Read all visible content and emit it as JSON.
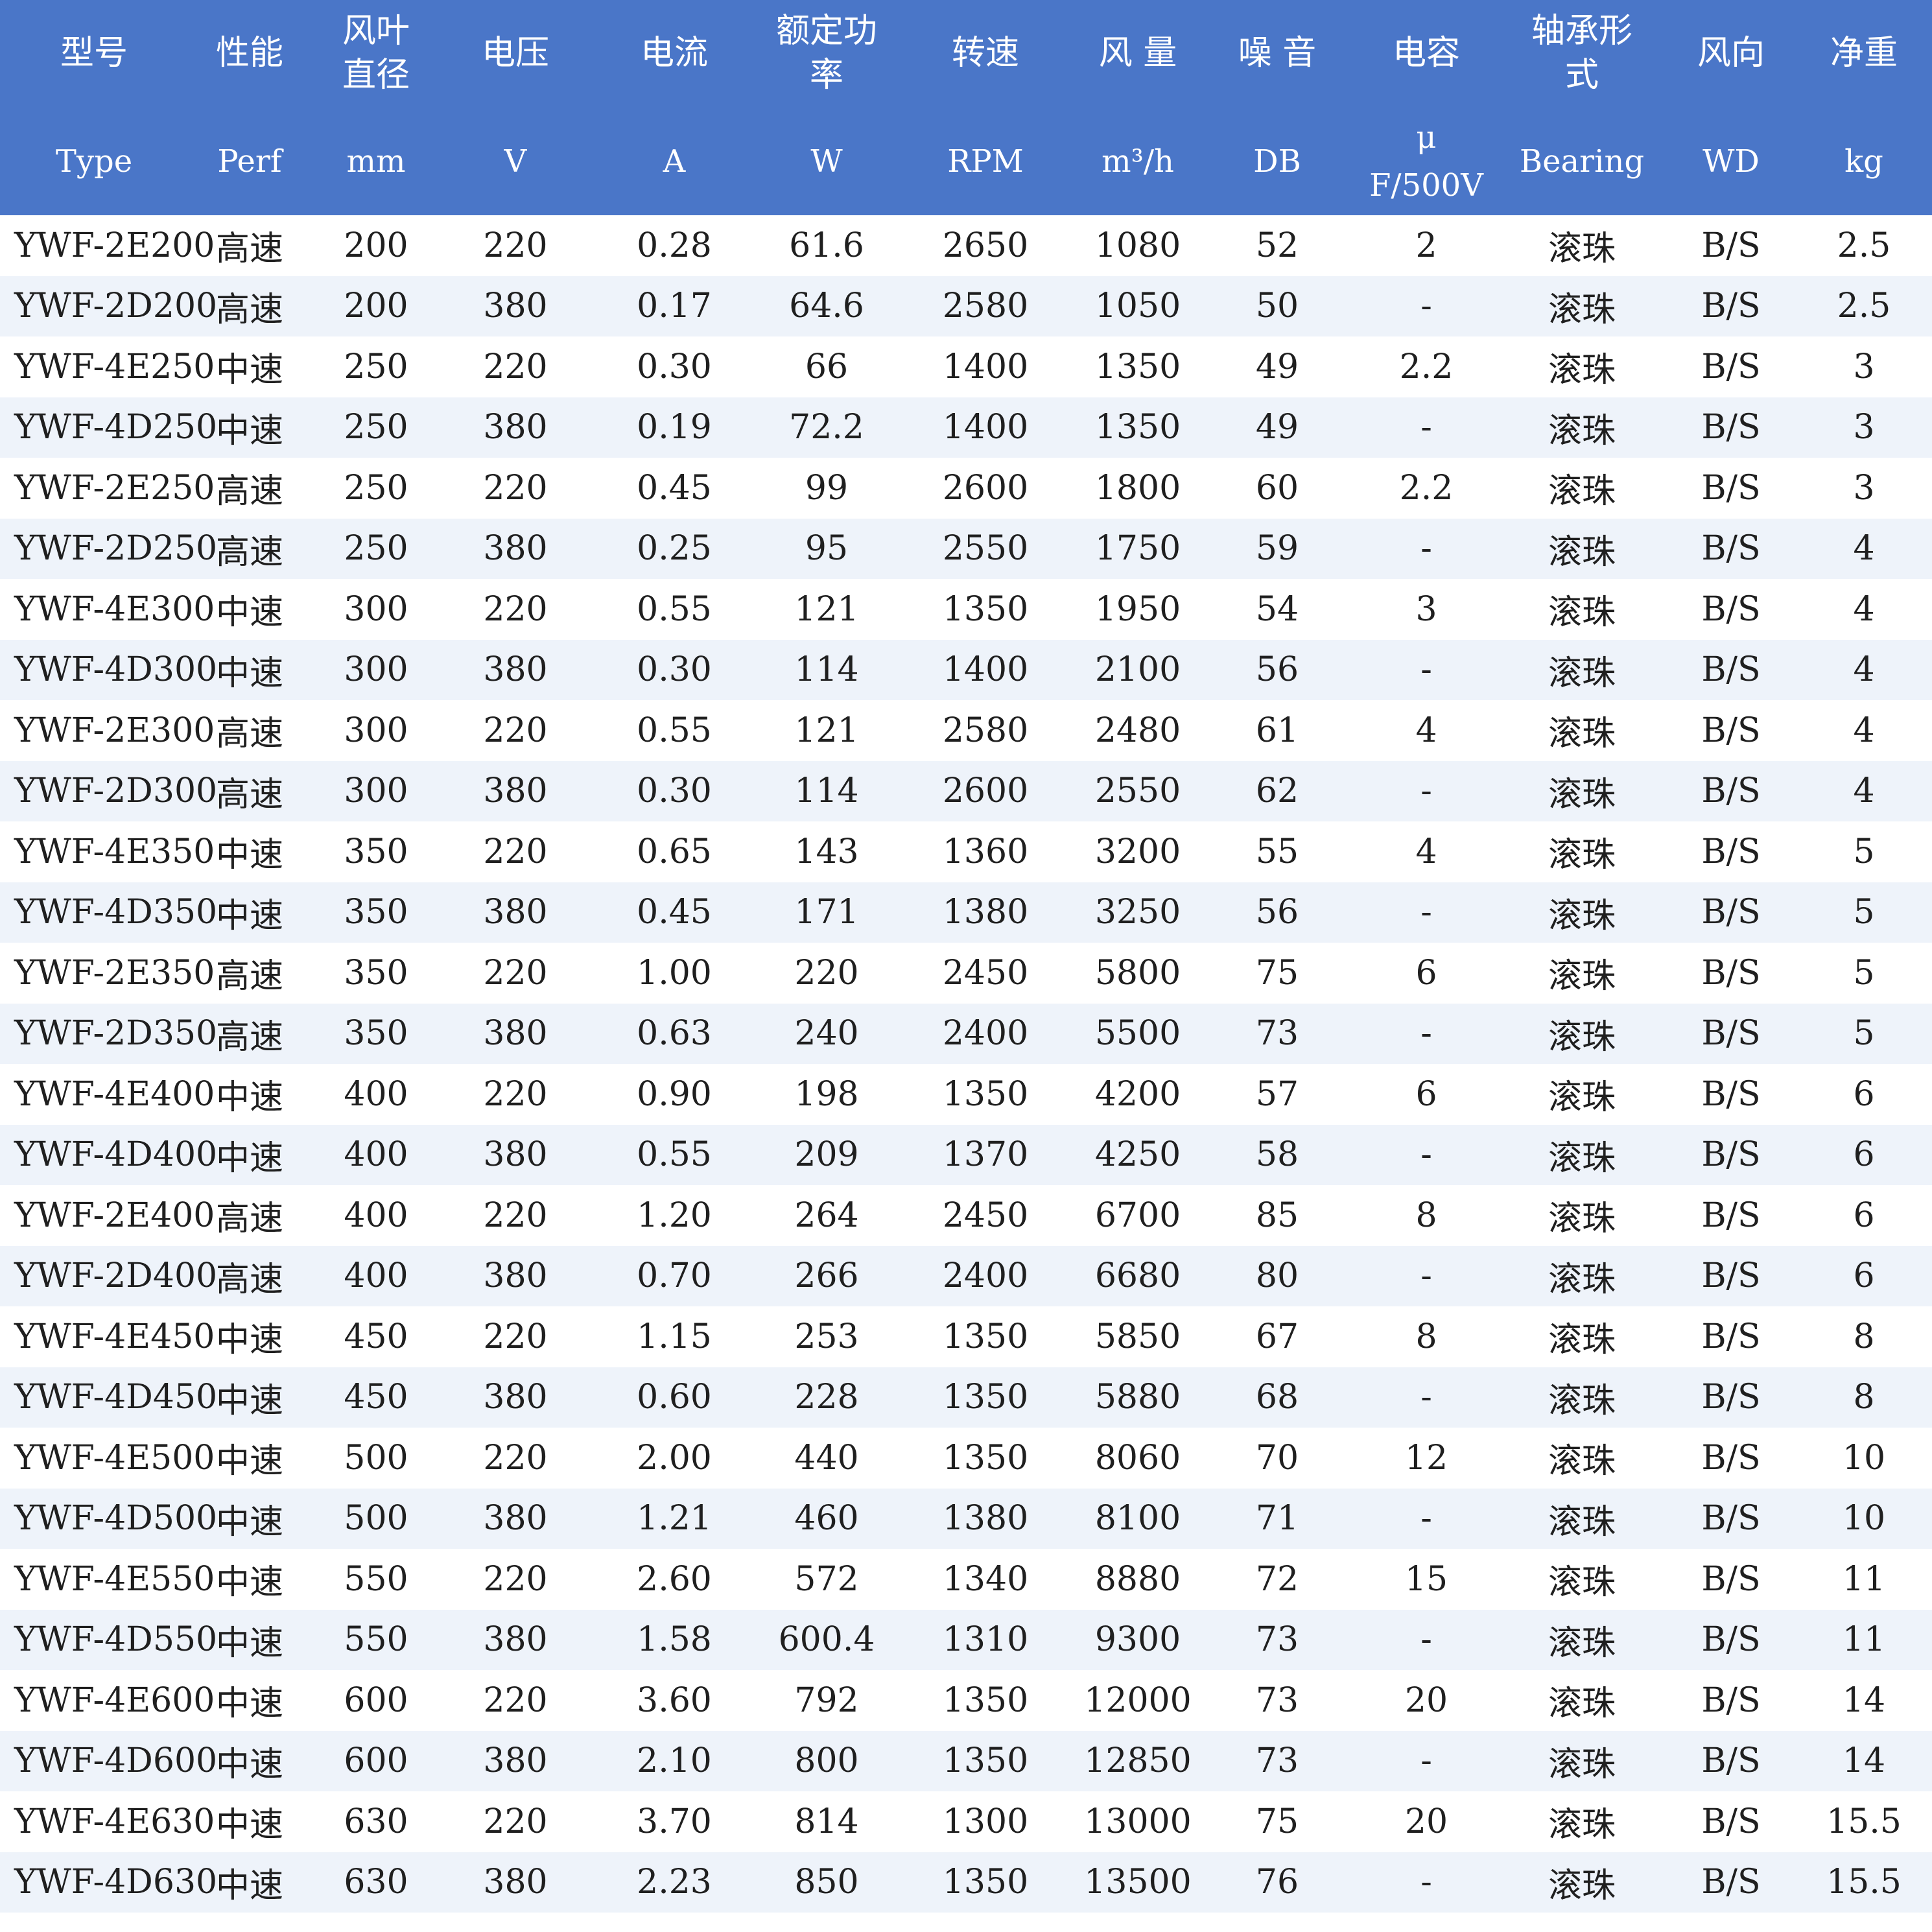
{
  "header": {
    "zh": [
      "型号",
      "性能",
      "风叶\n直径",
      "电压",
      "电流",
      "额定功\n率",
      "转速",
      "风 量",
      "噪 音",
      "电容",
      "轴承形\n式",
      "风向",
      "净重"
    ],
    "en": [
      "Type",
      "Perf",
      "mm",
      "V",
      "A",
      "W",
      "RPM",
      "m³/h",
      "DB",
      "μ\nF/500V",
      "Bearing",
      "WD",
      "kg"
    ]
  },
  "rows": [
    [
      "YWF-2E200",
      "高速",
      "200",
      "220",
      "0.28",
      "61.6",
      "2650",
      "1080",
      "52",
      "2",
      "滚珠",
      "B/S",
      "2.5"
    ],
    [
      "YWF-2D200",
      "高速",
      "200",
      "380",
      "0.17",
      "64.6",
      "2580",
      "1050",
      "50",
      "-",
      "滚珠",
      "B/S",
      "2.5"
    ],
    [
      "YWF-4E250",
      "中速",
      "250",
      "220",
      "0.30",
      "66",
      "1400",
      "1350",
      "49",
      "2.2",
      "滚珠",
      "B/S",
      "3"
    ],
    [
      "YWF-4D250",
      "中速",
      "250",
      "380",
      "0.19",
      "72.2",
      "1400",
      "1350",
      "49",
      "-",
      "滚珠",
      "B/S",
      "3"
    ],
    [
      "YWF-2E250",
      "高速",
      "250",
      "220",
      "0.45",
      "99",
      "2600",
      "1800",
      "60",
      "2.2",
      "滚珠",
      "B/S",
      "3"
    ],
    [
      "YWF-2D250",
      "高速",
      "250",
      "380",
      "0.25",
      "95",
      "2550",
      "1750",
      "59",
      "-",
      "滚珠",
      "B/S",
      "4"
    ],
    [
      "YWF-4E300",
      "中速",
      "300",
      "220",
      "0.55",
      "121",
      "1350",
      "1950",
      "54",
      "3",
      "滚珠",
      "B/S",
      "4"
    ],
    [
      "YWF-4D300",
      "中速",
      "300",
      "380",
      "0.30",
      "114",
      "1400",
      "2100",
      "56",
      "-",
      "滚珠",
      "B/S",
      "4"
    ],
    [
      "YWF-2E300",
      "高速",
      "300",
      "220",
      "0.55",
      "121",
      "2580",
      "2480",
      "61",
      "4",
      "滚珠",
      "B/S",
      "4"
    ],
    [
      "YWF-2D300",
      "高速",
      "300",
      "380",
      "0.30",
      "114",
      "2600",
      "2550",
      "62",
      "-",
      "滚珠",
      "B/S",
      "4"
    ],
    [
      "YWF-4E350",
      "中速",
      "350",
      "220",
      "0.65",
      "143",
      "1360",
      "3200",
      "55",
      "4",
      "滚珠",
      "B/S",
      "5"
    ],
    [
      "YWF-4D350",
      "中速",
      "350",
      "380",
      "0.45",
      "171",
      "1380",
      "3250",
      "56",
      "-",
      "滚珠",
      "B/S",
      "5"
    ],
    [
      "YWF-2E350",
      "高速",
      "350",
      "220",
      "1.00",
      "220",
      "2450",
      "5800",
      "75",
      "6",
      "滚珠",
      "B/S",
      "5"
    ],
    [
      "YWF-2D350",
      "高速",
      "350",
      "380",
      "0.63",
      "240",
      "2400",
      "5500",
      "73",
      "-",
      "滚珠",
      "B/S",
      "5"
    ],
    [
      "YWF-4E400",
      "中速",
      "400",
      "220",
      "0.90",
      "198",
      "1350",
      "4200",
      "57",
      "6",
      "滚珠",
      "B/S",
      "6"
    ],
    [
      "YWF-4D400",
      "中速",
      "400",
      "380",
      "0.55",
      "209",
      "1370",
      "4250",
      "58",
      "-",
      "滚珠",
      "B/S",
      "6"
    ],
    [
      "YWF-2E400",
      "高速",
      "400",
      "220",
      "1.20",
      "264",
      "2450",
      "6700",
      "85",
      "8",
      "滚珠",
      "B/S",
      "6"
    ],
    [
      "YWF-2D400",
      "高速",
      "400",
      "380",
      "0.70",
      "266",
      "2400",
      "6680",
      "80",
      "-",
      "滚珠",
      "B/S",
      "6"
    ],
    [
      "YWF-4E450",
      "中速",
      "450",
      "220",
      "1.15",
      "253",
      "1350",
      "5850",
      "67",
      "8",
      "滚珠",
      "B/S",
      "8"
    ],
    [
      "YWF-4D450",
      "中速",
      "450",
      "380",
      "0.60",
      "228",
      "1350",
      "5880",
      "68",
      "-",
      "滚珠",
      "B/S",
      "8"
    ],
    [
      "YWF-4E500",
      "中速",
      "500",
      "220",
      "2.00",
      "440",
      "1350",
      "8060",
      "70",
      "12",
      "滚珠",
      "B/S",
      "10"
    ],
    [
      "YWF-4D500",
      "中速",
      "500",
      "380",
      "1.21",
      "460",
      "1380",
      "8100",
      "71",
      "-",
      "滚珠",
      "B/S",
      "10"
    ],
    [
      "YWF-4E550",
      "中速",
      "550",
      "220",
      "2.60",
      "572",
      "1340",
      "8880",
      "72",
      "15",
      "滚珠",
      "B/S",
      "11"
    ],
    [
      "YWF-4D550",
      "中速",
      "550",
      "380",
      "1.58",
      "600.4",
      "1310",
      "9300",
      "73",
      "-",
      "滚珠",
      "B/S",
      "11"
    ],
    [
      "YWF-4E600",
      "中速",
      "600",
      "220",
      "3.60",
      "792",
      "1350",
      "12000",
      "73",
      "20",
      "滚珠",
      "B/S",
      "14"
    ],
    [
      "YWF-4D600",
      "中速",
      "600",
      "380",
      "2.10",
      "800",
      "1350",
      "12850",
      "73",
      "-",
      "滚珠",
      "B/S",
      "14"
    ],
    [
      "YWF-4E630",
      "中速",
      "630",
      "220",
      "3.70",
      "814",
      "1300",
      "13000",
      "75",
      "20",
      "滚珠",
      "B/S",
      "15.5"
    ],
    [
      "YWF-4D630",
      "中速",
      "630",
      "380",
      "2.23",
      "850",
      "1350",
      "13500",
      "76",
      "-",
      "滚珠",
      "B/S",
      "15.5"
    ]
  ],
  "colors": {
    "header_bg": "#4a76c8",
    "header_text": "#ffffff",
    "row_alt_bg": "#eef3fa"
  }
}
